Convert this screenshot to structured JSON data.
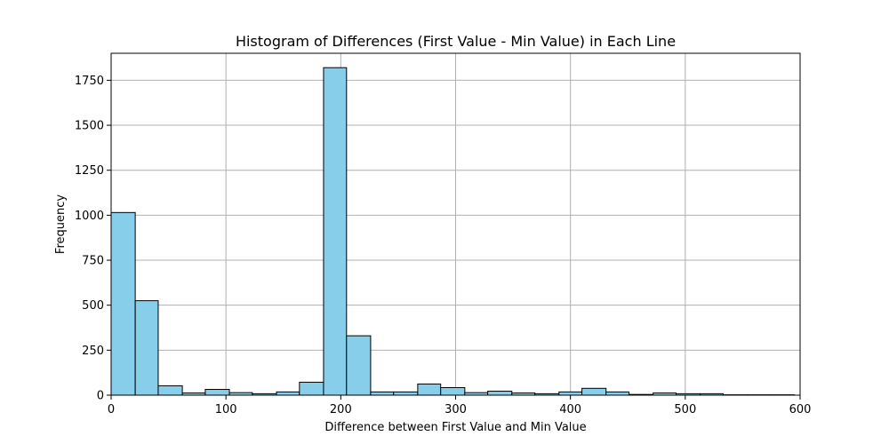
{
  "chart_data": {
    "type": "bar",
    "title": "Histogram of Differences (First Value - Min Value) in Each Line",
    "xlabel": "Difference between First Value and Min Value",
    "ylabel": "Frequency",
    "xlim": [
      0,
      600
    ],
    "ylim": [
      0,
      1900
    ],
    "xticks": [
      0,
      100,
      200,
      300,
      400,
      500,
      600
    ],
    "yticks": [
      0,
      250,
      500,
      750,
      1000,
      1250,
      1500,
      1750
    ],
    "grid": true,
    "bar_color": "#87ceeb",
    "bar_edge_color": "#000000",
    "bins": [
      {
        "x0": 0,
        "x1": 21,
        "count": 1015
      },
      {
        "x0": 21,
        "x1": 41,
        "count": 525
      },
      {
        "x0": 41,
        "x1": 62,
        "count": 52
      },
      {
        "x0": 62,
        "x1": 82,
        "count": 12
      },
      {
        "x0": 82,
        "x1": 103,
        "count": 32
      },
      {
        "x0": 103,
        "x1": 123,
        "count": 14
      },
      {
        "x0": 123,
        "x1": 144,
        "count": 8
      },
      {
        "x0": 144,
        "x1": 164,
        "count": 18
      },
      {
        "x0": 164,
        "x1": 185,
        "count": 72
      },
      {
        "x0": 185,
        "x1": 205,
        "count": 1820
      },
      {
        "x0": 205,
        "x1": 226,
        "count": 330
      },
      {
        "x0": 226,
        "x1": 246,
        "count": 18
      },
      {
        "x0": 246,
        "x1": 267,
        "count": 18
      },
      {
        "x0": 267,
        "x1": 287,
        "count": 62
      },
      {
        "x0": 287,
        "x1": 308,
        "count": 42
      },
      {
        "x0": 308,
        "x1": 328,
        "count": 14
      },
      {
        "x0": 328,
        "x1": 349,
        "count": 22
      },
      {
        "x0": 349,
        "x1": 369,
        "count": 12
      },
      {
        "x0": 369,
        "x1": 390,
        "count": 8
      },
      {
        "x0": 390,
        "x1": 410,
        "count": 18
      },
      {
        "x0": 410,
        "x1": 431,
        "count": 38
      },
      {
        "x0": 431,
        "x1": 451,
        "count": 18
      },
      {
        "x0": 451,
        "x1": 472,
        "count": 4
      },
      {
        "x0": 472,
        "x1": 492,
        "count": 12
      },
      {
        "x0": 492,
        "x1": 513,
        "count": 8
      },
      {
        "x0": 513,
        "x1": 533,
        "count": 8
      },
      {
        "x0": 533,
        "x1": 554,
        "count": 2
      },
      {
        "x0": 554,
        "x1": 574,
        "count": 2
      },
      {
        "x0": 574,
        "x1": 595,
        "count": 2
      }
    ]
  }
}
